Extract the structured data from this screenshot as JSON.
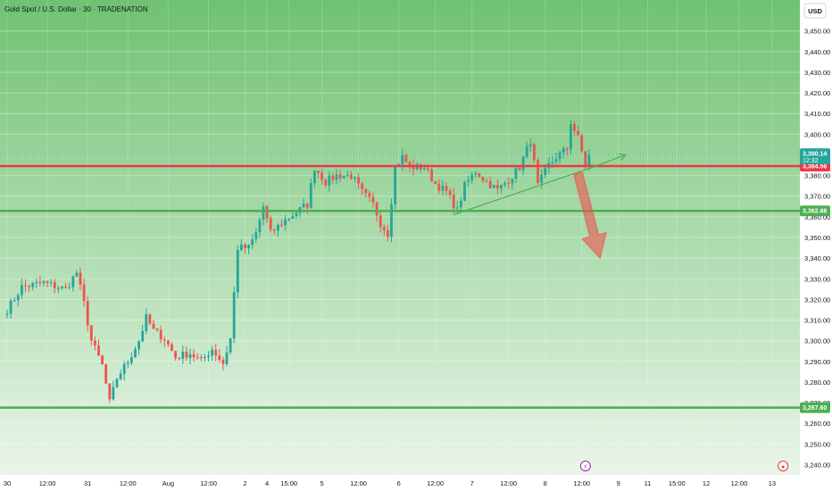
{
  "chart_data": {
    "type": "candlestick",
    "title": "Gold Spot / U.S. Dollar · 30 · TRADENATION",
    "currency_button": "USD",
    "ylim": [
      3235,
      3465
    ],
    "y_ticks": [
      3240,
      3250,
      3260,
      3270,
      3280,
      3290,
      3300,
      3310,
      3320,
      3330,
      3340,
      3350,
      3360,
      3370,
      3380,
      3390,
      3400,
      3410,
      3420,
      3430,
      3440,
      3450
    ],
    "y_tick_labels": [
      "3,240.00",
      "3,250.00",
      "3,260.00",
      "3,270.00",
      "3,280.00",
      "3,290.00",
      "3,300.00",
      "3,310.00",
      "3,320.00",
      "3,330.00",
      "3,340.00",
      "3,350.00",
      "3,360.00",
      "3,370.00",
      "3,380.00",
      "3,390.00",
      "3,400.00",
      "3,410.00",
      "3,420.00",
      "3,430.00",
      "3,440.00",
      "3,450.00"
    ],
    "x_tick_labels": [
      "30",
      "12:00",
      "31",
      "12:00",
      "Aug",
      "12:00",
      "2",
      "4",
      "15:00",
      "5",
      "12:00",
      "6",
      "12:00",
      "7",
      "12:00",
      "8",
      "12:00",
      "9",
      "11",
      "15:00",
      "12",
      "12:00",
      "13"
    ],
    "x_tick_index": [
      0,
      11,
      22,
      33,
      44,
      55,
      65,
      71,
      77,
      86,
      96,
      107,
      117,
      127,
      137,
      147,
      157,
      167,
      175,
      183,
      191,
      200,
      209
    ],
    "price_path": [
      [
        0,
        3315
      ],
      [
        4,
        3326
      ],
      [
        10,
        3328
      ],
      [
        16,
        3325
      ],
      [
        19,
        3333
      ],
      [
        21,
        3318
      ],
      [
        23,
        3300
      ],
      [
        26,
        3288
      ],
      [
        28,
        3270
      ],
      [
        30,
        3282
      ],
      [
        33,
        3290
      ],
      [
        36,
        3300
      ],
      [
        38,
        3311
      ],
      [
        40,
        3305
      ],
      [
        43,
        3301
      ],
      [
        46,
        3292
      ],
      [
        50,
        3294
      ],
      [
        53,
        3290
      ],
      [
        56,
        3296
      ],
      [
        59,
        3289
      ],
      [
        61,
        3301
      ],
      [
        63,
        3345
      ],
      [
        66,
        3345
      ],
      [
        68,
        3352
      ],
      [
        70,
        3365
      ],
      [
        72,
        3352
      ],
      [
        75,
        3357
      ],
      [
        78,
        3361
      ],
      [
        82,
        3366
      ],
      [
        84,
        3384
      ],
      [
        87,
        3377
      ],
      [
        90,
        3380
      ],
      [
        94,
        3380
      ],
      [
        97,
        3372
      ],
      [
        100,
        3366
      ],
      [
        102,
        3357
      ],
      [
        104,
        3352
      ],
      [
        106,
        3384
      ],
      [
        108,
        3389
      ],
      [
        110,
        3384
      ],
      [
        114,
        3384
      ],
      [
        117,
        3376
      ],
      [
        120,
        3372
      ],
      [
        123,
        3363
      ],
      [
        125,
        3375
      ],
      [
        128,
        3382
      ],
      [
        131,
        3377
      ],
      [
        134,
        3373
      ],
      [
        137,
        3378
      ],
      [
        140,
        3384
      ],
      [
        143,
        3397
      ],
      [
        145,
        3375
      ],
      [
        148,
        3385
      ],
      [
        150,
        3389
      ],
      [
        153,
        3393
      ],
      [
        154,
        3406
      ],
      [
        156,
        3398
      ],
      [
        158,
        3385
      ],
      [
        159,
        3390.14
      ]
    ],
    "last_price": 3390.14,
    "last_price_label": "3,390.14",
    "countdown_label": "12:32",
    "levels": [
      {
        "name": "resistance",
        "value": 3384.56,
        "label": "3,384.56",
        "color": "#f23645"
      },
      {
        "name": "support-upper",
        "value": 3362.88,
        "label": "3,362.88",
        "color": "#4caf50"
      },
      {
        "name": "support-lower",
        "value": 3267.6,
        "label": "3,267.60",
        "color": "#4caf50"
      }
    ],
    "trendline": {
      "from": [
        122,
        3361
      ],
      "to": [
        160,
        3384
      ]
    },
    "trendline_ext": {
      "from": [
        160,
        3384
      ],
      "to": [
        169,
        3390
      ]
    },
    "forecast_arrow": {
      "from": [
        156,
        3381
      ],
      "to": [
        162,
        3340
      ]
    },
    "event_icons": [
      "lightning-icon",
      "us-flag-icon"
    ],
    "colors": {
      "up": "#26a69a",
      "down": "#ef5350",
      "bg_top": "#6fc271",
      "bg_bottom": "#e9f5e9",
      "price_tag": "#26a69a",
      "red_tag": "#f23645",
      "green_tag": "#4caf50"
    }
  }
}
